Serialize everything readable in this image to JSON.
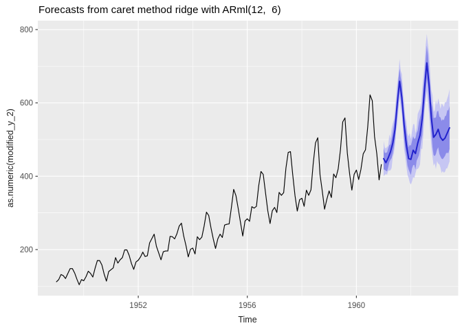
{
  "chart_data": {
    "type": "line",
    "title": "Forecasts from caret method ridge with ARml(12,  6)",
    "xlabel": "Time",
    "ylabel": "as.numeric(modified_y_2)",
    "x_ticks": [
      1952,
      1956,
      1960
    ],
    "y_ticks": [
      200,
      400,
      600,
      800
    ],
    "x_minor_gridlines": [
      1950,
      1954,
      1958,
      1962
    ],
    "y_minor_gridlines": [
      100,
      300,
      500,
      700
    ],
    "x_domain": [
      1948.316,
      1963.735
    ],
    "y_domain": [
      74.4,
      824.4
    ],
    "grid": true,
    "legend": "none",
    "panel_background": "#EBEBEB",
    "gridline_color": "#FFFFFF",
    "tick_label_color": "#4D4D4D",
    "axis_title_color": "#1A1A1A",
    "series": [
      {
        "name": "observed",
        "color": "#000000",
        "width": 1.15,
        "x_start": 1949.0,
        "step_years": 0.0833333,
        "values": [
          112,
          118,
          132,
          129,
          121,
          135,
          148,
          148,
          136,
          119,
          104,
          118,
          115,
          126,
          141,
          135,
          125,
          149,
          170,
          170,
          158,
          133,
          114,
          140,
          145,
          150,
          178,
          163,
          172,
          178,
          199,
          199,
          184,
          162,
          146,
          166,
          171,
          180,
          193,
          181,
          183,
          218,
          230,
          242,
          209,
          191,
          172,
          194,
          196,
          196,
          236,
          235,
          229,
          243,
          264,
          272,
          237,
          211,
          180,
          201,
          204,
          188,
          235,
          227,
          234,
          264,
          302,
          293,
          259,
          229,
          203,
          229,
          242,
          233,
          267,
          269,
          270,
          315,
          364,
          347,
          312,
          274,
          237,
          278,
          284,
          277,
          317,
          313,
          318,
          374,
          413,
          405,
          355,
          306,
          271,
          306,
          315,
          301,
          356,
          348,
          355,
          422,
          465,
          467,
          404,
          347,
          305,
          336,
          340,
          318,
          362,
          348,
          363,
          435,
          491,
          505,
          404,
          359,
          310,
          337,
          360,
          342,
          406,
          396,
          420,
          472,
          548,
          559,
          463,
          407,
          362,
          405,
          417,
          391,
          419,
          461,
          472,
          535,
          622,
          606,
          508,
          461,
          390,
          432
        ]
      },
      {
        "name": "forecast_mean",
        "color": "#2222CC",
        "width": 2,
        "x_start": 1961.0,
        "step_years": 0.0833333,
        "values": [
          448,
          437,
          450,
          466,
          490,
          528,
          600,
          659,
          615,
          540,
          485,
          448,
          446,
          471,
          462,
          490,
          512,
          558,
          640,
          709,
          650,
          560,
          506,
          514,
          528,
          506,
          498,
          504,
          518,
          532
        ]
      }
    ],
    "ribbons": [
      {
        "name": "interval_95",
        "color": "#C6C6F3",
        "x_start": 1961.0,
        "step_years": 0.0833333,
        "jag": 24,
        "lo": [
          420,
          407,
          418,
          432,
          454,
          490,
          560,
          618,
          572,
          495,
          438,
          399,
          395,
          419,
          408,
          434,
          454,
          498,
          578,
          646,
          585,
          493,
          437,
          443,
          455,
          432,
          422,
          426,
          438,
          450
        ],
        "hi": [
          476,
          467,
          482,
          500,
          526,
          566,
          640,
          700,
          658,
          585,
          532,
          497,
          497,
          523,
          516,
          546,
          570,
          618,
          702,
          772,
          715,
          627,
          575,
          585,
          601,
          580,
          574,
          582,
          598,
          614
        ]
      },
      {
        "name": "interval_80",
        "color": "#8B8BE9",
        "x_start": 1961.0,
        "step_years": 0.0833333,
        "jag": 14,
        "lo": [
          432,
          420,
          432,
          447,
          469,
          506,
          577,
          635,
          590,
          514,
          457,
          419,
          416,
          440,
          430,
          457,
          477,
          522,
          603,
          671,
          611,
          520,
          464,
          471,
          484,
          461,
          452,
          457,
          469,
          482
        ],
        "hi": [
          464,
          454,
          468,
          485,
          511,
          550,
          623,
          683,
          640,
          566,
          513,
          477,
          476,
          502,
          494,
          523,
          547,
          594,
          677,
          747,
          689,
          600,
          548,
          557,
          572,
          551,
          544,
          551,
          567,
          582
        ]
      }
    ]
  }
}
